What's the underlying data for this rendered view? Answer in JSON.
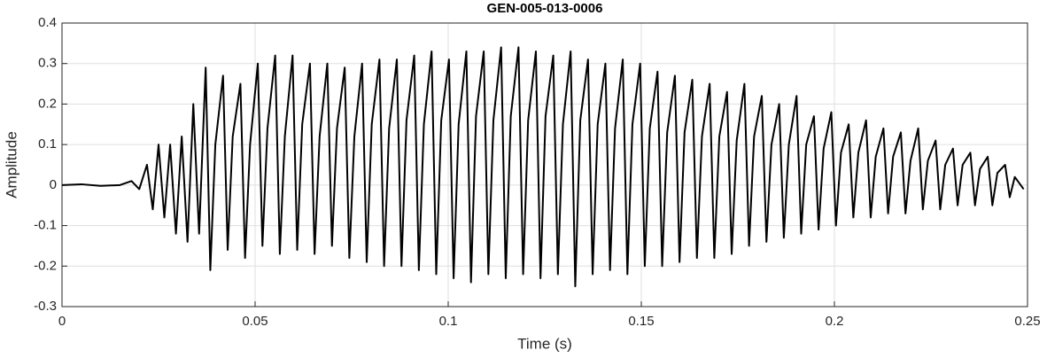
{
  "chart_data": {
    "type": "line",
    "title": "GEN-005-013-0006",
    "xlabel": "Time (s)",
    "ylabel": "Amplitude",
    "xlim": [
      0,
      0.25
    ],
    "ylim": [
      -0.3,
      0.4
    ],
    "xticks": [
      0,
      0.05,
      0.1,
      0.15,
      0.2,
      0.25
    ],
    "yticks": [
      -0.3,
      -0.2,
      -0.1,
      0,
      0.1,
      0.2,
      0.3,
      0.4
    ],
    "grid": true,
    "x": [
      0,
      0.005,
      0.01,
      0.015,
      0.018,
      0.02,
      0.022,
      0.0235,
      0.025,
      0.0265,
      0.028,
      0.0295,
      0.031,
      0.0325,
      0.034,
      0.0355,
      0.0372,
      0.0384,
      0.0397,
      0.0417,
      0.0429,
      0.0442,
      0.0462,
      0.0474,
      0.0487,
      0.0507,
      0.0519,
      0.0532,
      0.0552,
      0.0564,
      0.0577,
      0.0597,
      0.0609,
      0.0622,
      0.0642,
      0.0654,
      0.0667,
      0.0687,
      0.0699,
      0.0712,
      0.0732,
      0.0744,
      0.0757,
      0.0777,
      0.0789,
      0.0802,
      0.0822,
      0.0834,
      0.0847,
      0.0867,
      0.0879,
      0.0892,
      0.0912,
      0.0924,
      0.0937,
      0.0957,
      0.0969,
      0.0982,
      0.1002,
      0.1014,
      0.1027,
      0.1047,
      0.1059,
      0.1072,
      0.1092,
      0.1104,
      0.1117,
      0.1137,
      0.1149,
      0.1162,
      0.1182,
      0.1194,
      0.1207,
      0.1227,
      0.1239,
      0.1252,
      0.1272,
      0.1284,
      0.1297,
      0.1317,
      0.1329,
      0.1342,
      0.1362,
      0.1374,
      0.1387,
      0.1407,
      0.1419,
      0.1432,
      0.1452,
      0.1464,
      0.1477,
      0.1497,
      0.1509,
      0.1522,
      0.1542,
      0.1554,
      0.1567,
      0.1587,
      0.1599,
      0.1612,
      0.1632,
      0.1644,
      0.1657,
      0.1677,
      0.1689,
      0.1702,
      0.1722,
      0.1734,
      0.1747,
      0.1767,
      0.1779,
      0.1792,
      0.1812,
      0.1824,
      0.1837,
      0.1857,
      0.1869,
      0.1882,
      0.1902,
      0.1914,
      0.1927,
      0.1947,
      0.1959,
      0.1972,
      0.1992,
      0.2004,
      0.2017,
      0.2037,
      0.2049,
      0.2062,
      0.2082,
      0.2094,
      0.2107,
      0.2127,
      0.2139,
      0.2152,
      0.2172,
      0.2184,
      0.2197,
      0.2217,
      0.2229,
      0.2242,
      0.2262,
      0.2274,
      0.2287,
      0.2307,
      0.2319,
      0.2332,
      0.2352,
      0.2364,
      0.2377,
      0.2397,
      0.2409,
      0.2422,
      0.2442,
      0.2454,
      0.2467,
      0.249
    ],
    "series": [
      {
        "color": "#000000",
        "values": [
          0,
          0.002,
          -0.002,
          0,
          0.01,
          -0.01,
          0.05,
          -0.06,
          0.1,
          -0.08,
          0.1,
          -0.12,
          0.12,
          -0.14,
          0.2,
          -0.12,
          0.29,
          -0.21,
          0.1,
          0.27,
          -0.16,
          0.12,
          0.25,
          -0.18,
          0.1,
          0.3,
          -0.15,
          0.14,
          0.32,
          -0.17,
          0.12,
          0.32,
          -0.16,
          0.15,
          0.3,
          -0.17,
          0.12,
          0.3,
          -0.15,
          0.14,
          0.29,
          -0.18,
          0.12,
          0.3,
          -0.19,
          0.15,
          0.31,
          -0.2,
          0.14,
          0.31,
          -0.2,
          0.16,
          0.32,
          -0.21,
          0.15,
          0.33,
          -0.22,
          0.16,
          0.31,
          -0.23,
          0.15,
          0.33,
          -0.24,
          0.17,
          0.33,
          -0.22,
          0.16,
          0.34,
          -0.23,
          0.17,
          0.34,
          -0.22,
          0.16,
          0.33,
          -0.23,
          0.17,
          0.32,
          -0.22,
          0.15,
          0.33,
          -0.25,
          0.16,
          0.31,
          -0.22,
          0.15,
          0.3,
          -0.21,
          0.14,
          0.31,
          -0.22,
          0.15,
          0.3,
          -0.2,
          0.14,
          0.28,
          -0.2,
          0.13,
          0.27,
          -0.19,
          0.13,
          0.26,
          -0.18,
          0.12,
          0.25,
          -0.18,
          0.12,
          0.23,
          -0.17,
          0.11,
          0.25,
          -0.15,
          0.12,
          0.22,
          -0.14,
          0.1,
          0.2,
          -0.13,
          0.1,
          0.22,
          -0.12,
          0.1,
          0.17,
          -0.11,
          0.09,
          0.18,
          -0.1,
          0.08,
          0.15,
          -0.08,
          0.08,
          0.16,
          -0.08,
          0.07,
          0.14,
          -0.07,
          0.07,
          0.13,
          -0.07,
          0.06,
          0.14,
          -0.06,
          0.06,
          0.11,
          -0.06,
          0.05,
          0.09,
          -0.05,
          0.05,
          0.08,
          -0.05,
          0.04,
          0.07,
          -0.05,
          0.03,
          0.05,
          -0.03,
          0.02,
          -0.01
        ]
      }
    ]
  }
}
